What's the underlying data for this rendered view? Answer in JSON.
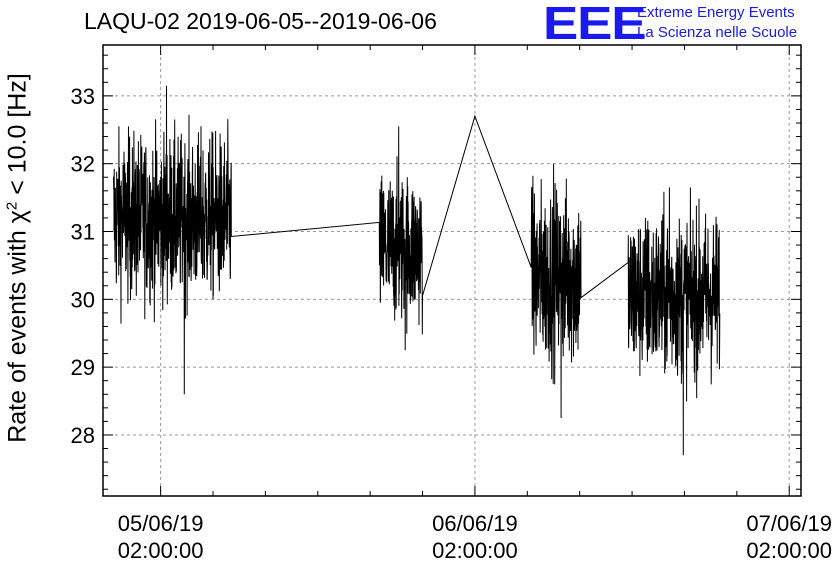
{
  "header": {
    "title": "LAQU-02 2019-06-05--2019-06-06"
  },
  "logo": {
    "mark": "EEE",
    "line1": "Extreme Energy Events",
    "line2": "La Scienza nelle Scuole",
    "color": "#1a1aee"
  },
  "chart_data": {
    "type": "line",
    "title": "LAQU-02 2019-06-05--2019-06-06",
    "ylabel_prefix": "Rate of events with ",
    "ylabel_symbol": "χ",
    "ylabel_sup": "2",
    "ylabel_suffix": " < 10.0 [Hz]",
    "ylim": [
      27.1,
      33.75
    ],
    "yticks": [
      "28",
      "29",
      "30",
      "31",
      "32",
      "33"
    ],
    "x_unit": "hours since 05/06/19 00:00:00",
    "xlim": [
      -2.4,
      50.9
    ],
    "xticks": [
      {
        "x": 2,
        "date": "05/06/19",
        "time": "02:00:00"
      },
      {
        "x": 26,
        "date": "06/06/19",
        "time": "02:00:00"
      },
      {
        "x": 50,
        "date": "07/06/19",
        "time": "02:00:00"
      }
    ],
    "grid": true,
    "line_color": "#000000",
    "segments": [
      {
        "x_start": -1.6,
        "x_end": 7.4,
        "mean": 31.2,
        "spread": 0.6,
        "min": 28.6,
        "max": 33.15
      },
      {
        "x_start": 18.7,
        "x_end": 22.0,
        "mean": 30.75,
        "spread": 0.55,
        "min": 29.25,
        "max": 32.55
      },
      {
        "x_start": 26.0,
        "x_end": 26.0,
        "mean": 32.7,
        "spread": 0.0,
        "min": 32.7,
        "max": 32.7
      },
      {
        "x_start": 30.3,
        "x_end": 34.1,
        "mean": 30.35,
        "spread": 0.65,
        "min": 28.25,
        "max": 32.0
      },
      {
        "x_start": 37.7,
        "x_end": 44.7,
        "mean": 30.05,
        "spread": 0.6,
        "min": 27.7,
        "max": 31.65
      }
    ]
  }
}
